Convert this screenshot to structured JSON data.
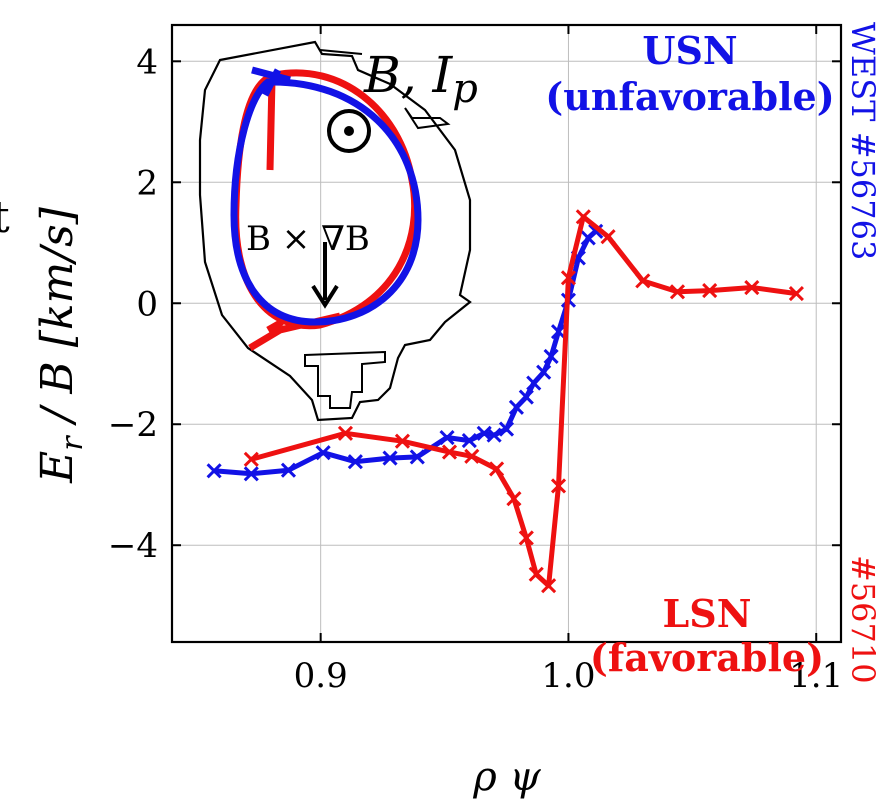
{
  "chart_data": {
    "type": "line",
    "xlabel": "ρ ψ",
    "ylabel": "E_r / B [km/s]",
    "xlim": [
      0.84,
      1.11
    ],
    "ylim": [
      -5.6,
      4.6
    ],
    "xticks": [
      0.9,
      1.0,
      1.1
    ],
    "xtick_labels": [
      "0.9",
      "1.0",
      "1.1"
    ],
    "yticks": [
      4,
      2,
      0,
      -2,
      -4
    ],
    "ytick_labels": [
      "4",
      "2",
      "0",
      "−2",
      "−4"
    ],
    "grid": true,
    "series": [
      {
        "name": "WEST #56763",
        "color": "#1212e6",
        "marker": "x",
        "points": [
          [
            0.857,
            -2.77
          ],
          [
            0.872,
            -2.82
          ],
          [
            0.887,
            -2.76
          ],
          [
            0.901,
            -2.47
          ],
          [
            0.914,
            -2.62
          ],
          [
            0.928,
            -2.56
          ],
          [
            0.939,
            -2.54
          ],
          [
            0.951,
            -2.22
          ],
          [
            0.96,
            -2.27
          ],
          [
            0.966,
            -2.15
          ],
          [
            0.97,
            -2.18
          ],
          [
            0.975,
            -2.08
          ],
          [
            0.979,
            -1.72
          ],
          [
            0.983,
            -1.55
          ],
          [
            0.986,
            -1.32
          ],
          [
            0.99,
            -1.14
          ],
          [
            0.993,
            -0.88
          ],
          [
            0.996,
            -0.47
          ],
          [
            1.0,
            0.05
          ],
          [
            1.004,
            0.75
          ],
          [
            1.008,
            1.08
          ],
          [
            1.011,
            1.19
          ]
        ]
      },
      {
        "name": "WEST #56710",
        "color": "#ee1111",
        "marker": "x",
        "points": [
          [
            0.872,
            -2.58
          ],
          [
            0.91,
            -2.15
          ],
          [
            0.933,
            -2.28
          ],
          [
            0.952,
            -2.46
          ],
          [
            0.961,
            -2.53
          ],
          [
            0.971,
            -2.74
          ],
          [
            0.978,
            -3.23
          ],
          [
            0.983,
            -3.88
          ],
          [
            0.987,
            -4.48
          ],
          [
            0.992,
            -4.67
          ],
          [
            0.996,
            -3.02
          ],
          [
            1.0,
            0.42
          ],
          [
            1.006,
            1.43
          ],
          [
            1.016,
            1.1
          ],
          [
            1.03,
            0.37
          ],
          [
            1.044,
            0.19
          ],
          [
            1.057,
            0.21
          ],
          [
            1.074,
            0.26
          ],
          [
            1.092,
            0.16
          ]
        ]
      }
    ],
    "annotations": {
      "usn_line1": "USN",
      "usn_line2": "(unfavorable)",
      "lsn_line1": "LSN",
      "lsn_line2": "(favorable)",
      "right_blue": "WEST #56763",
      "right_red": "#56710",
      "inset_field": "B, I",
      "inset_field_sub": "p",
      "inset_drift": "B × ∇B",
      "cut_letter": "t"
    },
    "colors": {
      "usn": "#1212e6",
      "lsn": "#ee1111",
      "grid": "#bdbdbd"
    }
  }
}
